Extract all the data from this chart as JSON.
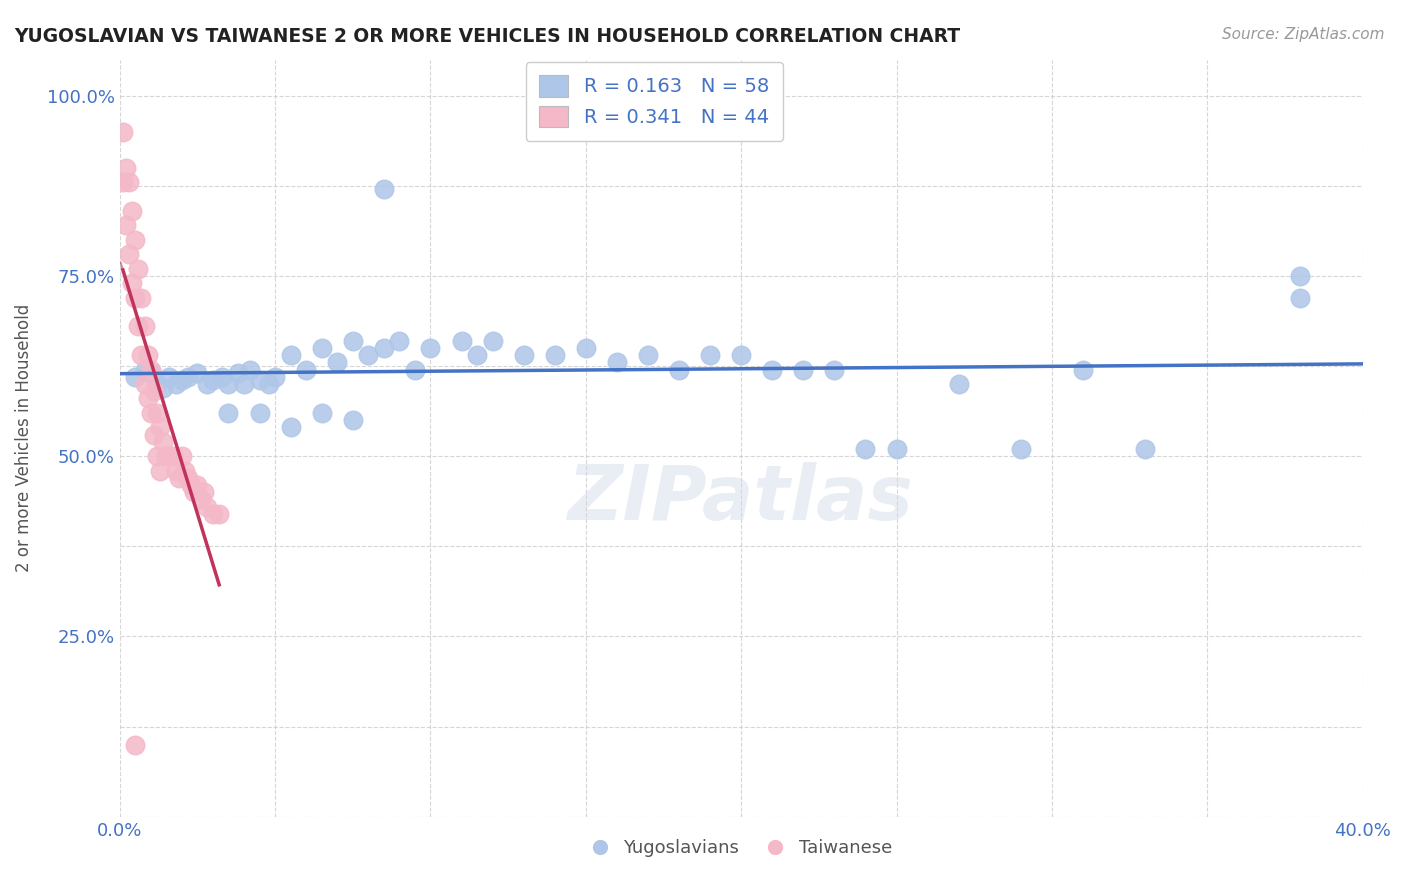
{
  "title": "YUGOSLAVIAN VS TAIWANESE 2 OR MORE VEHICLES IN HOUSEHOLD CORRELATION CHART",
  "source_text": "Source: ZipAtlas.com",
  "ylabel": "2 or more Vehicles in Household",
  "xlim": [
    0.0,
    0.4
  ],
  "ylim": [
    0.0,
    1.05
  ],
  "legend_entries": [
    {
      "label": "R = 0.163   N = 58",
      "color": "#aec6e8"
    },
    {
      "label": "R = 0.341   N = 44",
      "color": "#f4b8c8"
    }
  ],
  "blue_scatter_x": [
    0.005,
    0.008,
    0.01,
    0.012,
    0.014,
    0.016,
    0.018,
    0.02,
    0.022,
    0.025,
    0.028,
    0.03,
    0.033,
    0.035,
    0.038,
    0.04,
    0.042,
    0.045,
    0.048,
    0.05,
    0.055,
    0.06,
    0.065,
    0.07,
    0.075,
    0.08,
    0.085,
    0.09,
    0.095,
    0.1,
    0.11,
    0.115,
    0.12,
    0.13,
    0.14,
    0.15,
    0.16,
    0.17,
    0.18,
    0.19,
    0.2,
    0.21,
    0.22,
    0.23,
    0.24,
    0.25,
    0.27,
    0.29,
    0.31,
    0.33,
    0.035,
    0.045,
    0.055,
    0.065,
    0.075,
    0.085,
    0.38,
    0.38
  ],
  "blue_scatter_y": [
    0.61,
    0.62,
    0.615,
    0.6,
    0.595,
    0.61,
    0.6,
    0.605,
    0.61,
    0.615,
    0.6,
    0.605,
    0.61,
    0.6,
    0.615,
    0.6,
    0.62,
    0.605,
    0.6,
    0.61,
    0.64,
    0.62,
    0.65,
    0.63,
    0.66,
    0.64,
    0.65,
    0.66,
    0.62,
    0.65,
    0.66,
    0.64,
    0.66,
    0.64,
    0.64,
    0.65,
    0.63,
    0.64,
    0.62,
    0.64,
    0.64,
    0.62,
    0.62,
    0.62,
    0.51,
    0.51,
    0.6,
    0.51,
    0.62,
    0.51,
    0.56,
    0.56,
    0.54,
    0.56,
    0.55,
    0.87,
    0.75,
    0.72
  ],
  "pink_scatter_x": [
    0.001,
    0.001,
    0.002,
    0.002,
    0.003,
    0.003,
    0.004,
    0.004,
    0.005,
    0.005,
    0.006,
    0.006,
    0.007,
    0.007,
    0.008,
    0.008,
    0.009,
    0.009,
    0.01,
    0.01,
    0.011,
    0.011,
    0.012,
    0.012,
    0.013,
    0.013,
    0.014,
    0.015,
    0.016,
    0.017,
    0.018,
    0.019,
    0.02,
    0.021,
    0.022,
    0.023,
    0.024,
    0.025,
    0.026,
    0.027,
    0.028,
    0.03,
    0.032,
    0.005
  ],
  "pink_scatter_y": [
    0.95,
    0.88,
    0.9,
    0.82,
    0.88,
    0.78,
    0.84,
    0.74,
    0.8,
    0.72,
    0.76,
    0.68,
    0.72,
    0.64,
    0.68,
    0.6,
    0.64,
    0.58,
    0.62,
    0.56,
    0.59,
    0.53,
    0.56,
    0.5,
    0.54,
    0.48,
    0.52,
    0.5,
    0.5,
    0.5,
    0.48,
    0.47,
    0.5,
    0.48,
    0.47,
    0.46,
    0.45,
    0.46,
    0.44,
    0.45,
    0.43,
    0.42,
    0.42,
    0.1
  ],
  "blue_line_color": "#4472c4",
  "pink_line_color": "#c0335a",
  "blue_scatter_color": "#aec6e8",
  "pink_scatter_color": "#f4b8c8",
  "grid_color": "#cccccc",
  "watermark": "ZIPatlas",
  "watermark_color": "#d0d8e8",
  "background_color": "#ffffff"
}
